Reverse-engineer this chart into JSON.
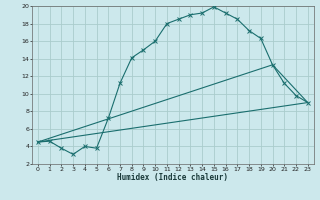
{
  "title": "",
  "xlabel": "Humidex (Indice chaleur)",
  "bg_color": "#cce8ec",
  "grid_color": "#aacccc",
  "line_color": "#1a6e6e",
  "xlim": [
    -0.5,
    23.5
  ],
  "ylim": [
    2,
    20
  ],
  "xticks": [
    0,
    1,
    2,
    3,
    4,
    5,
    6,
    7,
    8,
    9,
    10,
    11,
    12,
    13,
    14,
    15,
    16,
    17,
    18,
    19,
    20,
    21,
    22,
    23
  ],
  "yticks": [
    2,
    4,
    6,
    8,
    10,
    12,
    14,
    16,
    18,
    20
  ],
  "line1_x": [
    0,
    1,
    2,
    3,
    4,
    5,
    6,
    7,
    8,
    9,
    10,
    11,
    12,
    13,
    14,
    15,
    16,
    17,
    18,
    19,
    20,
    21,
    22,
    23
  ],
  "line1_y": [
    4.5,
    4.6,
    3.8,
    3.1,
    4.0,
    3.8,
    7.2,
    11.2,
    14.1,
    15.0,
    16.0,
    18.0,
    18.5,
    19.0,
    19.2,
    19.9,
    19.2,
    18.5,
    17.2,
    16.3,
    13.3,
    11.2,
    9.8,
    9.0
  ],
  "line2_x": [
    0,
    23
  ],
  "line2_y": [
    4.5,
    9.0
  ],
  "line3_x": [
    0,
    20,
    23
  ],
  "line3_y": [
    4.5,
    13.3,
    9.0
  ]
}
